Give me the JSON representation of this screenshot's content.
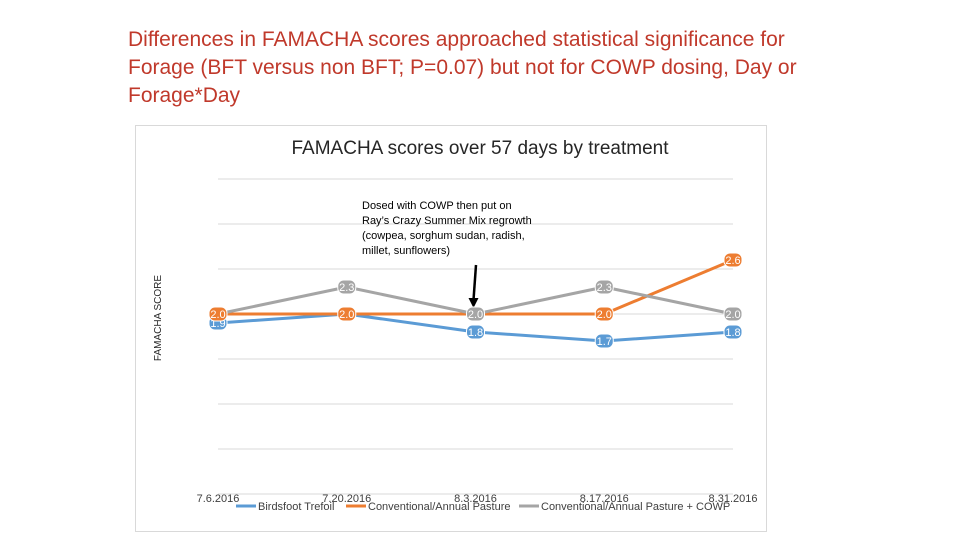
{
  "slide": {
    "title_line1": "Differences in FAMACHA scores approached statistical significance for",
    "title_line2": "Forage (BFT versus non BFT; P=0.07) but not for COWP dosing, Day or",
    "title_line3": "Forage*Day"
  },
  "chart_data": {
    "type": "line",
    "title": "FAMACHA scores over 57 days by treatment",
    "ylabel": "FAMACHA SCORE",
    "xlabel": "",
    "categories": [
      "7.6.2016",
      "7.20.2016",
      "8.3.2016",
      "8.17.2016",
      "8.31.2016"
    ],
    "ylim": [
      0,
      3.5
    ],
    "grid": true,
    "legend_position": "bottom",
    "series": [
      {
        "name": "Birdsfoot Trefoil",
        "color": "#5b9bd5",
        "values": [
          1.9,
          2.0,
          1.8,
          1.7,
          1.8
        ],
        "labels": [
          "1.9",
          null,
          "1.8",
          "1.7",
          "1.8"
        ]
      },
      {
        "name": "Conventional/Annual Pasture",
        "color": "#ed7d31",
        "values": [
          2.0,
          2.0,
          2.0,
          2.0,
          2.6
        ],
        "labels": [
          "2.0",
          "2.0",
          null,
          "2.0",
          "2.6"
        ]
      },
      {
        "name": "Conventional/Annual Pasture + COWP",
        "color": "#a5a5a5",
        "values": [
          2.0,
          2.3,
          2.0,
          2.3,
          2.0
        ],
        "labels": [
          null,
          "2.3",
          "2.0",
          "2.3",
          "2.0"
        ]
      }
    ],
    "annotation": {
      "lines": [
        "Dosed with COWP then put on",
        "Ray’s Crazy Summer Mix regrowth",
        "(cowpea, sorghum sudan, radish,",
        "millet, sunflowers)"
      ],
      "points_to_category": "8.3.2016"
    }
  }
}
